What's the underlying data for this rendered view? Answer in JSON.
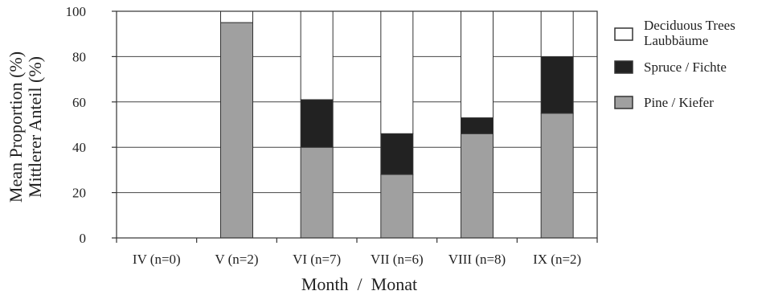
{
  "chart_data": {
    "type": "bar",
    "stacked": true,
    "categories": [
      "IV (n=0)",
      "V (n=2)",
      "VI (n=7)",
      "VII (n=6)",
      "VIII (n=8)",
      "IX (n=2)"
    ],
    "series": [
      {
        "name": "Pine / Kiefer",
        "color": "#a0a0a0",
        "values": [
          0,
          95,
          40,
          28,
          46,
          55
        ]
      },
      {
        "name": "Spruce / Fichte",
        "color": "#222222",
        "values": [
          0,
          0,
          21,
          18,
          7,
          25
        ]
      },
      {
        "name": "Deciduous Trees Laubbäume",
        "color": "#ffffff",
        "values": [
          0,
          5,
          39,
          54,
          47,
          20
        ]
      }
    ],
    "legend_labels": [
      {
        "line1": "Deciduous Trees",
        "line2": "Laubbäume",
        "color": "#ffffff"
      },
      {
        "line1": "Spruce / Fichte",
        "line2": "",
        "color": "#222222"
      },
      {
        "line1": "Pine / Kiefer",
        "line2": "",
        "color": "#a0a0a0"
      }
    ],
    "ylabel_line1": "Mean Proportion (%)",
    "ylabel_line2": "Mittlerer Anteil (%)",
    "xlabel": "Month  /  Monat",
    "ylim": [
      0,
      100
    ],
    "yticks": [
      0,
      20,
      40,
      60,
      80,
      100
    ],
    "grid": true,
    "legend_position": "right"
  }
}
